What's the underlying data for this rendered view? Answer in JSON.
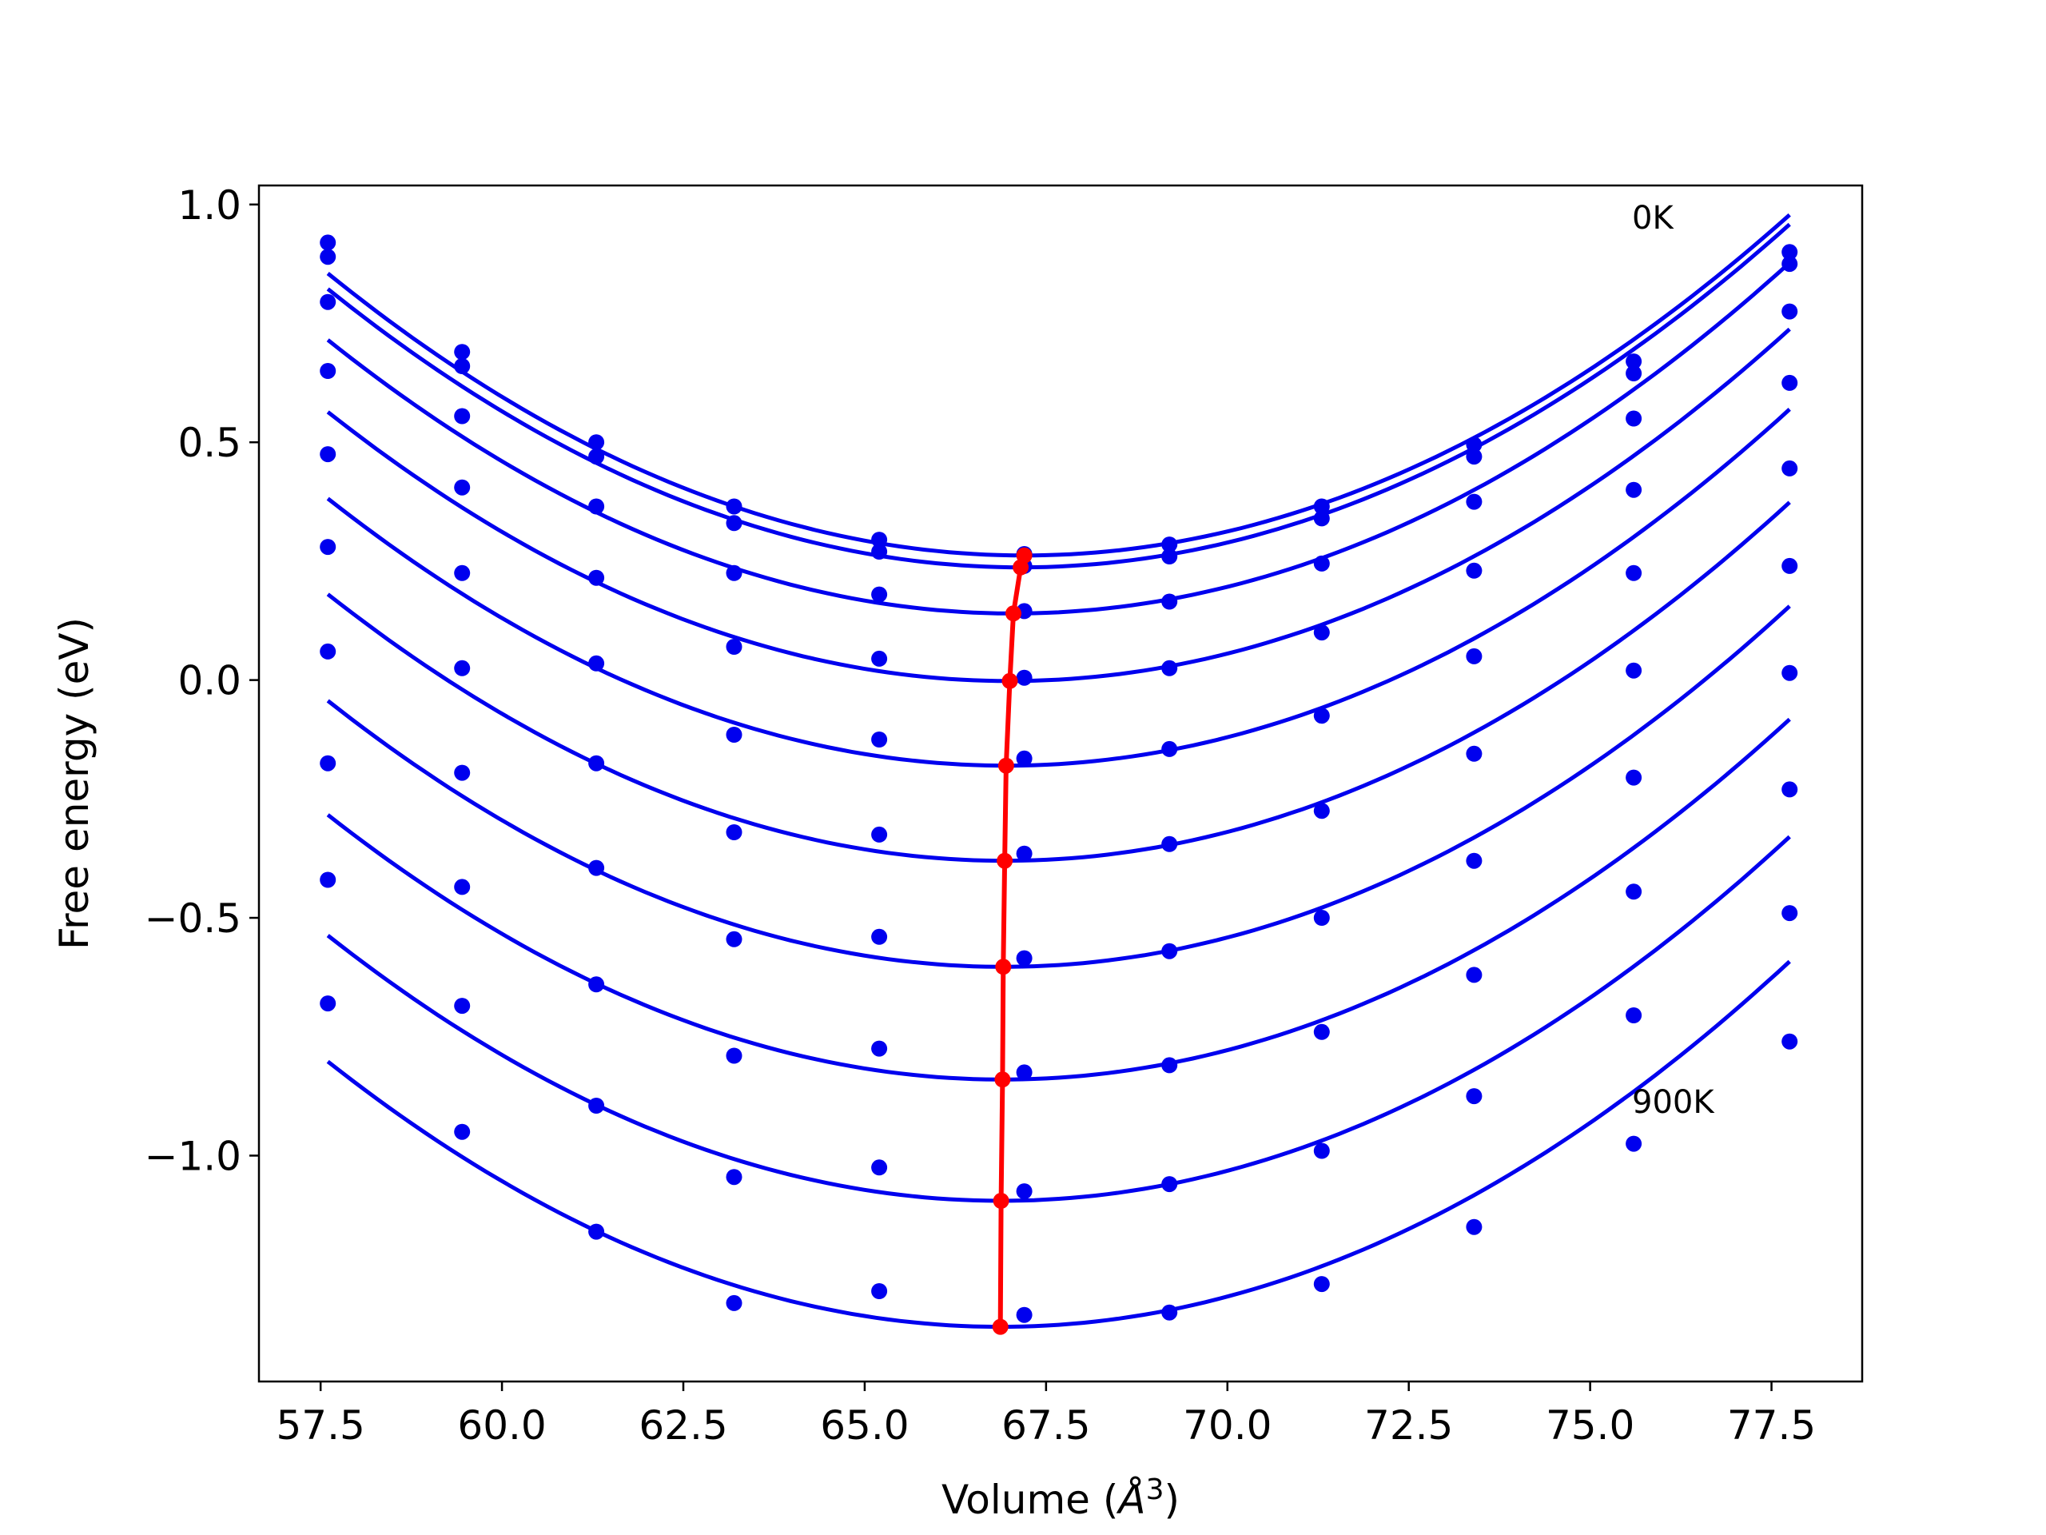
{
  "chart_data": {
    "type": "line",
    "title": "",
    "xlabel": "Volume (",
    "xlabel_unit": "Å",
    "xlabel_exp": "3",
    "xlabel_close": ")",
    "ylabel": "Free energy (eV)",
    "xlim": [
      56.65,
      78.75
    ],
    "ylim": [
      -1.475,
      1.04
    ],
    "xticks": [
      57.5,
      60.0,
      62.5,
      65.0,
      67.5,
      70.0,
      72.5,
      75.0,
      77.5
    ],
    "xtick_labels": [
      "57.5",
      "60.0",
      "62.5",
      "65.0",
      "67.5",
      "70.0",
      "72.5",
      "75.0",
      "77.5"
    ],
    "yticks": [
      1.0,
      0.5,
      0.0,
      -0.5,
      -1.0
    ],
    "ytick_labels": [
      "1.0",
      "0.5",
      "0.0",
      "−0.5",
      "−1.0"
    ],
    "grid": false,
    "legend": "none",
    "annotations": [
      {
        "text": "0K",
        "x": 75.6,
        "y": 0.95
      },
      {
        "text": "900K",
        "x": 75.6,
        "y": -0.92
      }
    ],
    "x": [
      57.6,
      59.45,
      61.3,
      63.2,
      65.2,
      67.2,
      69.2,
      71.3,
      73.4,
      75.6,
      77.75
    ],
    "colors": {
      "curves": "#0000ee",
      "points": "#0000ee",
      "minima": "#ff0000"
    },
    "series": [
      {
        "y": [
          0.92,
          0.69,
          0.5,
          0.365,
          0.295,
          0.265,
          0.285,
          0.365,
          0.495,
          0.67,
          0.9
        ],
        "min_x": 67.2,
        "min_y": 0.262
      },
      {
        "y": [
          0.89,
          0.66,
          0.47,
          0.33,
          0.27,
          0.24,
          0.26,
          0.34,
          0.47,
          0.645,
          0.875
        ],
        "min_x": 67.15,
        "min_y": 0.237
      },
      {
        "y": [
          0.795,
          0.555,
          0.365,
          0.225,
          0.18,
          0.145,
          0.165,
          0.245,
          0.375,
          0.55,
          0.775
        ],
        "min_x": 67.05,
        "min_y": 0.14
      },
      {
        "y": [
          0.65,
          0.405,
          0.215,
          0.07,
          0.045,
          0.005,
          0.025,
          0.1,
          0.23,
          0.4,
          0.625
        ],
        "min_x": 67.0,
        "min_y": -0.002
      },
      {
        "y": [
          0.475,
          0.225,
          0.035,
          -0.115,
          -0.125,
          -0.165,
          -0.145,
          -0.075,
          0.05,
          0.225,
          0.445
        ],
        "min_x": 66.95,
        "min_y": -0.18
      },
      {
        "y": [
          0.28,
          0.025,
          -0.175,
          -0.32,
          -0.325,
          -0.365,
          -0.345,
          -0.275,
          -0.155,
          0.02,
          0.24
        ],
        "min_x": 66.93,
        "min_y": -0.38
      },
      {
        "y": [
          0.06,
          -0.195,
          -0.395,
          -0.545,
          -0.54,
          -0.585,
          -0.57,
          -0.5,
          -0.38,
          -0.205,
          0.015
        ],
        "min_x": 66.91,
        "min_y": -0.603
      },
      {
        "y": [
          -0.175,
          -0.435,
          -0.64,
          -0.79,
          -0.775,
          -0.825,
          -0.81,
          -0.74,
          -0.62,
          -0.445,
          -0.23
        ],
        "min_x": 66.9,
        "min_y": -0.84
      },
      {
        "y": [
          -0.42,
          -0.685,
          -0.895,
          -1.045,
          -1.025,
          -1.075,
          -1.06,
          -0.99,
          -0.875,
          -0.705,
          -0.49
        ],
        "min_x": 66.88,
        "min_y": -1.095
      },
      {
        "y": [
          -0.68,
          -0.95,
          -1.16,
          -1.31,
          -1.285,
          -1.335,
          -1.33,
          -1.27,
          -1.15,
          -0.975,
          -0.76
        ],
        "min_x": 66.87,
        "min_y": -1.36
      }
    ]
  }
}
